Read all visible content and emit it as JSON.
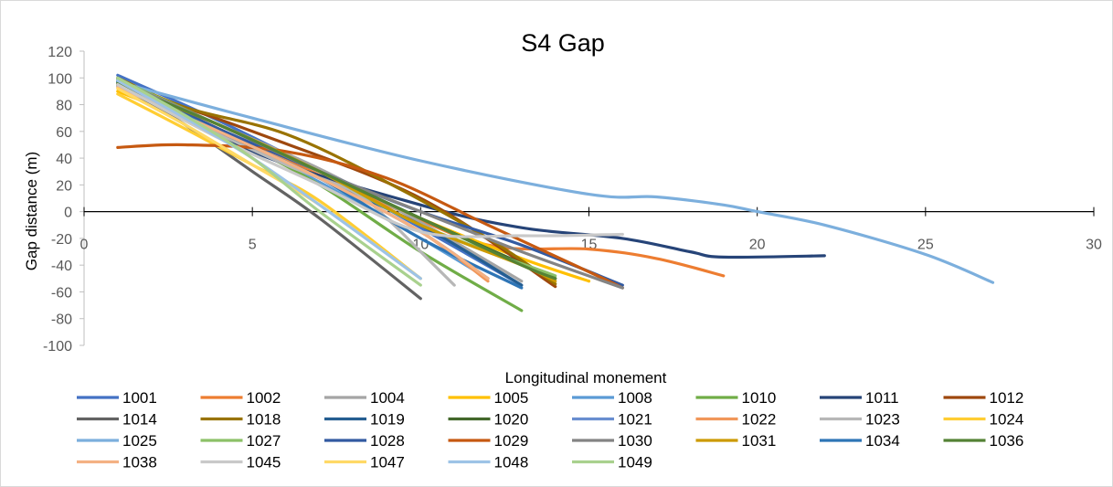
{
  "chart_data": {
    "type": "line",
    "title": "S4 Gap",
    "xlabel": "Longitudinal monement",
    "ylabel": "Gap distance (m)",
    "xlim": [
      0,
      30
    ],
    "ylim": [
      -100,
      120
    ],
    "xticks": [
      "0",
      "5",
      "10",
      "15",
      "20",
      "25",
      "30"
    ],
    "yticks": [
      "120",
      "100",
      "80",
      "60",
      "40",
      "20",
      "0",
      "-20",
      "-40",
      "-60",
      "-80",
      "-100"
    ],
    "legend_position": "bottom",
    "gridlines": false,
    "series": [
      {
        "name": "1001",
        "color": "#4472c4",
        "x": [
          1,
          4,
          7,
          10,
          13
        ],
        "y": [
          102,
          68,
          30,
          -12,
          -55
        ]
      },
      {
        "name": "1002",
        "color": "#ed7d31",
        "x": [
          1,
          5,
          9,
          12,
          15,
          17,
          19
        ],
        "y": [
          95,
          50,
          5,
          -25,
          -28,
          -35,
          -48
        ]
      },
      {
        "name": "1004",
        "color": "#a5a5a5",
        "x": [
          1,
          4,
          7,
          10,
          13
        ],
        "y": [
          97,
          65,
          32,
          -8,
          -52
        ]
      },
      {
        "name": "1005",
        "color": "#ffc000",
        "x": [
          1,
          4,
          7,
          10,
          13,
          15
        ],
        "y": [
          90,
          60,
          30,
          -5,
          -35,
          -52
        ]
      },
      {
        "name": "1008",
        "color": "#5b9bd5",
        "x": [
          1,
          4,
          7,
          10,
          12
        ],
        "y": [
          94,
          60,
          22,
          -20,
          -50
        ]
      },
      {
        "name": "1010",
        "color": "#70ad47",
        "x": [
          1,
          4,
          7,
          10,
          13
        ],
        "y": [
          96,
          60,
          20,
          -30,
          -74
        ]
      },
      {
        "name": "1011",
        "color": "#264478",
        "x": [
          1,
          5,
          10,
          13,
          16,
          18,
          19,
          22
        ],
        "y": [
          100,
          45,
          5,
          -12,
          -20,
          -30,
          -34,
          -33
        ]
      },
      {
        "name": "1012",
        "color": "#9e480e",
        "x": [
          1,
          5,
          10,
          14
        ],
        "y": [
          95,
          60,
          10,
          -56
        ]
      },
      {
        "name": "1014",
        "color": "#636363",
        "x": [
          1,
          3,
          5,
          7,
          10
        ],
        "y": [
          95,
          65,
          30,
          -5,
          -65
        ]
      },
      {
        "name": "1018",
        "color": "#997300",
        "x": [
          1,
          3,
          6,
          9,
          12,
          14
        ],
        "y": [
          100,
          78,
          58,
          22,
          -20,
          -54
        ]
      },
      {
        "name": "1019",
        "color": "#255e91",
        "x": [
          1,
          4,
          7,
          10,
          13
        ],
        "y": [
          98,
          60,
          25,
          -10,
          -55
        ]
      },
      {
        "name": "1020",
        "color": "#43682b",
        "x": [
          1,
          4,
          7,
          10,
          14
        ],
        "y": [
          97,
          65,
          30,
          -5,
          -50
        ]
      },
      {
        "name": "1021",
        "color": "#698ed0",
        "x": [
          1,
          4,
          7,
          10,
          12
        ],
        "y": [
          95,
          60,
          25,
          -15,
          -50
        ]
      },
      {
        "name": "1022",
        "color": "#f1975a",
        "x": [
          1,
          4,
          7,
          10,
          12
        ],
        "y": [
          96,
          62,
          25,
          -15,
          -52
        ]
      },
      {
        "name": "1023",
        "color": "#b7b7b7",
        "x": [
          1,
          3,
          6,
          8,
          9,
          10,
          11
        ],
        "y": [
          95,
          70,
          35,
          15,
          -5,
          -30,
          -55
        ]
      },
      {
        "name": "1024",
        "color": "#ffcd33",
        "x": [
          1,
          3,
          5,
          7,
          10
        ],
        "y": [
          88,
          62,
          35,
          8,
          -50
        ]
      },
      {
        "name": "1025",
        "color": "#7cafdd",
        "x": [
          1,
          5,
          10,
          15,
          17,
          19,
          20,
          22,
          25,
          27
        ],
        "y": [
          97,
          70,
          38,
          13,
          11,
          5,
          0,
          -10,
          -32,
          -53
        ]
      },
      {
        "name": "1027",
        "color": "#8cc168",
        "x": [
          1,
          4,
          7,
          10,
          14
        ],
        "y": [
          99,
          65,
          30,
          -10,
          -48
        ]
      },
      {
        "name": "1028",
        "color": "#335aa1",
        "x": [
          1,
          4,
          7,
          10,
          13,
          16
        ],
        "y": [
          98,
          62,
          30,
          0,
          -25,
          -55
        ]
      },
      {
        "name": "1029",
        "color": "#c65911",
        "x": [
          1,
          3,
          6,
          9,
          12,
          15,
          16
        ],
        "y": [
          48,
          50,
          45,
          25,
          -10,
          -45,
          -57
        ]
      },
      {
        "name": "1030",
        "color": "#848484",
        "x": [
          1,
          4,
          7,
          10,
          13,
          16
        ],
        "y": [
          98,
          65,
          30,
          0,
          -30,
          -57
        ]
      },
      {
        "name": "1031",
        "color": "#cc9a00",
        "x": [
          1,
          4,
          7,
          10,
          13,
          14
        ],
        "y": [
          95,
          65,
          30,
          -10,
          -40,
          -52
        ]
      },
      {
        "name": "1034",
        "color": "#2e75b6",
        "x": [
          1,
          4,
          7,
          10,
          13
        ],
        "y": [
          97,
          60,
          25,
          -20,
          -57
        ]
      },
      {
        "name": "1036",
        "color": "#548235",
        "x": [
          1,
          4,
          7,
          10,
          13,
          14
        ],
        "y": [
          96,
          65,
          30,
          -5,
          -40,
          -50
        ]
      },
      {
        "name": "1038",
        "color": "#f4b183",
        "x": [
          1,
          4,
          7,
          10,
          12
        ],
        "y": [
          93,
          60,
          25,
          -15,
          -50
        ]
      },
      {
        "name": "1045",
        "color": "#c9c9c9",
        "x": [
          1,
          4,
          7,
          10,
          13,
          16
        ],
        "y": [
          95,
          55,
          20,
          -15,
          -18,
          -17
        ]
      },
      {
        "name": "1047",
        "color": "#ffd966",
        "x": [
          1,
          3,
          5,
          7,
          10
        ],
        "y": [
          92,
          65,
          35,
          5,
          -50
        ]
      },
      {
        "name": "1048",
        "color": "#9dc3e6",
        "x": [
          1,
          3,
          5,
          7,
          10
        ],
        "y": [
          98,
          70,
          40,
          5,
          -50
        ]
      },
      {
        "name": "1049",
        "color": "#a9d18e",
        "x": [
          1,
          3,
          5,
          7,
          10
        ],
        "y": [
          100,
          72,
          40,
          0,
          -55
        ]
      }
    ]
  }
}
